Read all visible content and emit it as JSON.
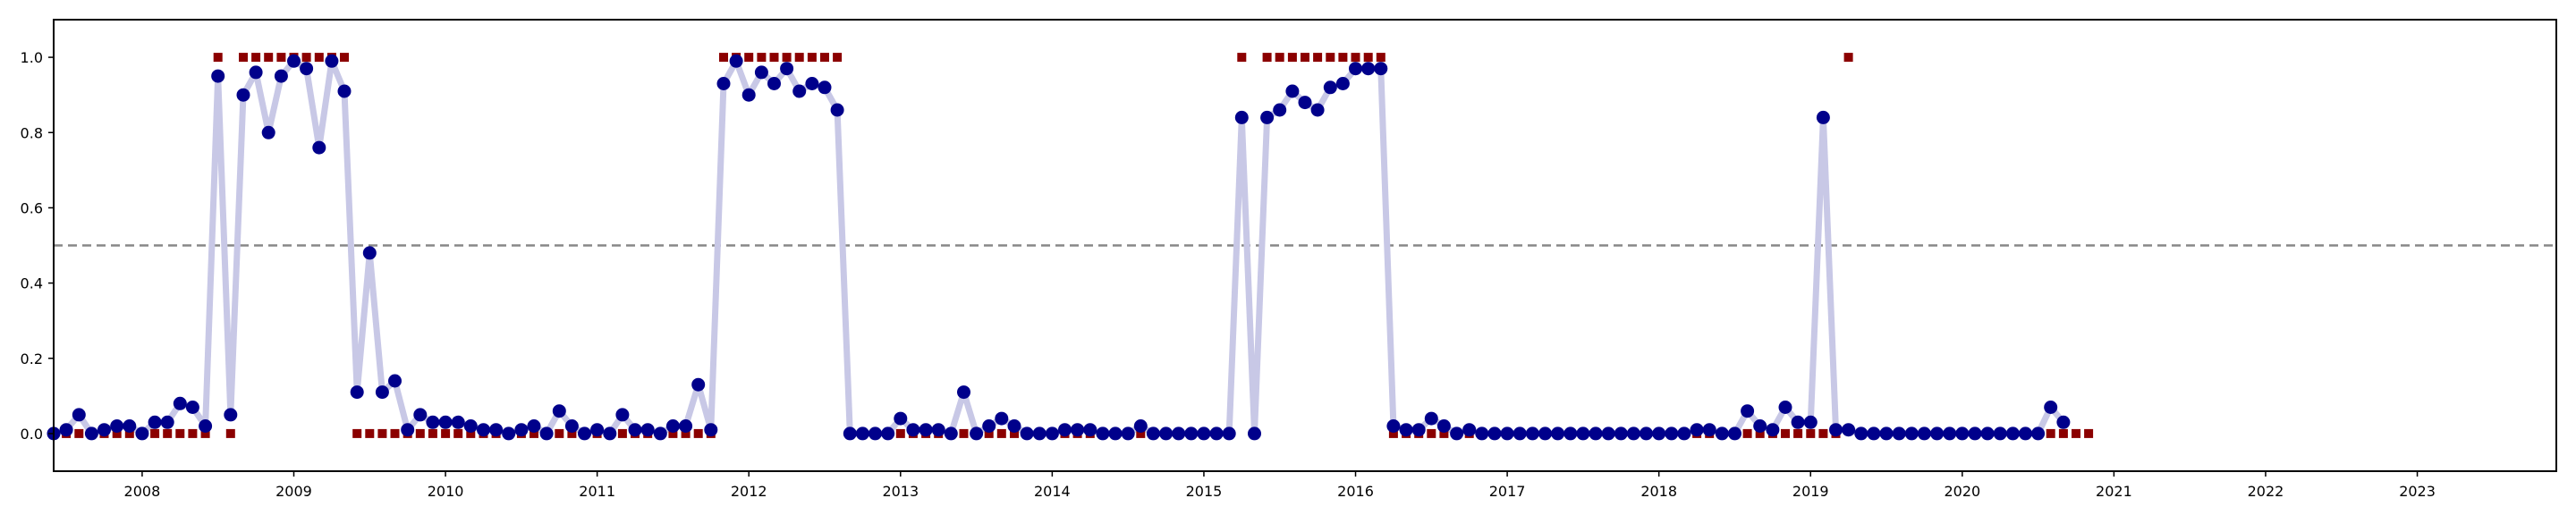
{
  "chart_data": {
    "type": "line",
    "title": "",
    "xlabel": "",
    "ylabel": "",
    "xlim": [
      "2007-06-01",
      "2023-12-01"
    ],
    "ylim": [
      -0.1,
      1.1
    ],
    "x_ticks": [
      "2008",
      "2009",
      "2010",
      "2011",
      "2012",
      "2013",
      "2014",
      "2015",
      "2016",
      "2017",
      "2018",
      "2019",
      "2020",
      "2021",
      "2022",
      "2023"
    ],
    "y_ticks": [
      "0.0",
      "0.2",
      "0.4",
      "0.6",
      "0.8",
      "1.0"
    ],
    "threshold": 0.5,
    "grid": false,
    "legend": "none",
    "colors": {
      "line": "#c8c8e6",
      "points": "#00008b",
      "labels": "#8b0000",
      "threshold": "#888888",
      "axes": "#000000"
    },
    "start_month": "2007-06",
    "series": [
      {
        "values": [
          0.0,
          0.01,
          0.05,
          0.0,
          0.01,
          0.02,
          0.02,
          0.0,
          0.03,
          0.03,
          0.08,
          0.07,
          0.02,
          0.95,
          0.05,
          0.9,
          0.96,
          0.8,
          0.95,
          0.99,
          0.97,
          0.76,
          0.99,
          0.91,
          0.11,
          0.48,
          0.11,
          0.14,
          0.01,
          0.05,
          0.03,
          0.03,
          0.03,
          0.02,
          0.01,
          0.01,
          0.0,
          0.01,
          0.02,
          0.0,
          0.06,
          0.02,
          0.0,
          0.01,
          0.0,
          0.05,
          0.01,
          0.01,
          0.0,
          0.02,
          0.02,
          0.13,
          0.01,
          0.93,
          0.99,
          0.9,
          0.96,
          0.93,
          0.97,
          0.91,
          0.93,
          0.92,
          0.86,
          0.0,
          0.0,
          0.0,
          0.0,
          0.04,
          0.01,
          0.01,
          0.01,
          0.0,
          0.11,
          0.0,
          0.02,
          0.04,
          0.02,
          0.0,
          0.0,
          0.0,
          0.01,
          0.01,
          0.01,
          0.0,
          0.0,
          0.0,
          0.02,
          0.0,
          0.0,
          0.0,
          0.0,
          0.0,
          0.0,
          0.0,
          0.84,
          0.0,
          0.84,
          0.86,
          0.91,
          0.88,
          0.86,
          0.92,
          0.93,
          0.97,
          0.97,
          0.97,
          0.02,
          0.01,
          0.01,
          0.04,
          0.02,
          0.0,
          0.01,
          0.0,
          0.0,
          0.0,
          0.0,
          0.0,
          0.0,
          0.0,
          0.0,
          0.0,
          0.0,
          0.0,
          0.0,
          0.0,
          0.0,
          0.0,
          0.0,
          0.0,
          0.01,
          0.01,
          0.0,
          0.0,
          0.06,
          0.02,
          0.01,
          0.07,
          0.03,
          0.03,
          0.84,
          0.01,
          0.01,
          0.0,
          0.0,
          0.0,
          0.0,
          0.0,
          0.0,
          0.0,
          0.0,
          0.0,
          0.0,
          0.0,
          0.0,
          0.0,
          0.0,
          0.0,
          0.07,
          0.03
        ]
      },
      {
        "values": [
          0,
          0,
          0,
          0,
          0,
          0,
          0,
          0,
          0,
          0,
          0,
          0,
          0,
          1,
          0,
          1,
          1,
          1,
          1,
          1,
          1,
          1,
          1,
          1,
          0,
          0,
          0,
          0,
          0,
          0,
          0,
          0,
          0,
          0,
          0,
          0,
          0,
          0,
          0,
          0,
          0,
          0,
          0,
          0,
          0,
          0,
          0,
          0,
          0,
          0,
          0,
          0,
          0,
          1,
          1,
          1,
          1,
          1,
          1,
          1,
          1,
          1,
          1,
          0,
          0,
          0,
          0,
          0,
          0,
          0,
          0,
          0,
          0,
          0,
          0,
          0,
          0,
          0,
          0,
          0,
          0,
          0,
          0,
          0,
          0,
          0,
          0,
          0,
          0,
          0,
          0,
          0,
          0,
          0,
          1,
          0,
          1,
          1,
          1,
          1,
          1,
          1,
          1,
          1,
          1,
          1,
          0,
          0,
          0,
          0,
          0,
          0,
          0,
          0,
          0,
          0,
          0,
          0,
          0,
          0,
          0,
          0,
          0,
          0,
          0,
          0,
          0,
          0,
          0,
          0,
          0,
          0,
          0,
          0,
          0,
          0,
          0,
          0,
          0,
          0,
          0,
          0,
          1,
          0,
          0,
          0,
          0,
          0,
          0,
          0,
          0,
          0,
          0,
          0,
          0,
          0,
          0,
          0,
          0,
          0,
          0,
          0
        ]
      }
    ]
  }
}
